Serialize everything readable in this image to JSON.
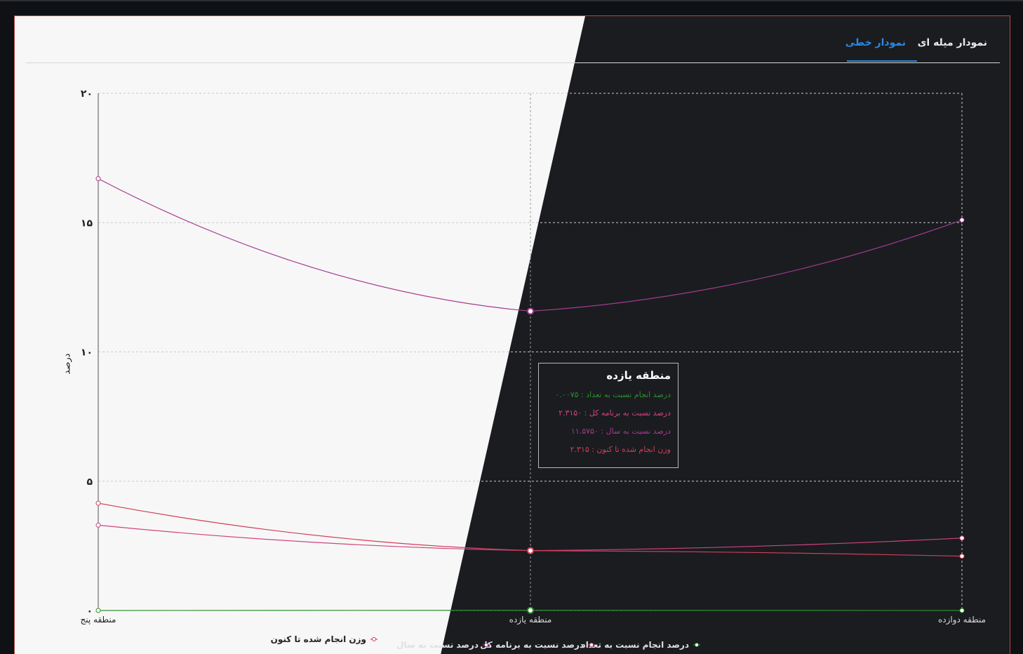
{
  "tabs": {
    "bar_chart": "نمودار میله ای",
    "line_chart": "نمودار خطی"
  },
  "colors": {
    "light_bg": "#f7f7f7",
    "dark_bg": "#1a1c20",
    "accent": "#2e86de",
    "green": "#2f8f2f",
    "pink": "#d0447f",
    "purple": "#a63b8f",
    "red": "#cf3e57"
  },
  "chart_data": {
    "type": "line",
    "ylabel": "درصد",
    "ylim": [
      0,
      20
    ],
    "yticks": [
      "۰",
      "۵",
      "۱۰",
      "۱۵",
      "۲۰"
    ],
    "categories": [
      "منطقه پنج",
      "منطقه یازده",
      "منطقه دوازده"
    ],
    "series": [
      {
        "name": "درصد انجام نسبت به تعداد",
        "color": "#2f8f2f",
        "values": [
          0,
          0.0075,
          0
        ]
      },
      {
        "name": "درصد نسبت به برنامه کل",
        "color": "#d0447f",
        "values": [
          3.3,
          2.315,
          2.8
        ]
      },
      {
        "name": "درصد نسبت به سال",
        "color": "#a63b8f",
        "values": [
          16.7,
          11.575,
          15.1
        ]
      },
      {
        "name": "وزن انجام شده تا کنون",
        "color": "#cf3e57",
        "values": [
          4.15,
          2.315,
          2.1
        ]
      }
    ],
    "grid": true,
    "legend_position": "bottom",
    "tooltip": {
      "title": "منطقه یازده",
      "rows": [
        "درصد انجام نسبت به تعداد : ۰.۰۰۷۵",
        "درصد نسبت به برنامه کل : ۲.۳۱۵۰",
        "درصد نسبت به سال : ۱۱.۵۷۵۰",
        "وزن انجام شده تا کنون : ۲.۳۱۵"
      ]
    }
  }
}
